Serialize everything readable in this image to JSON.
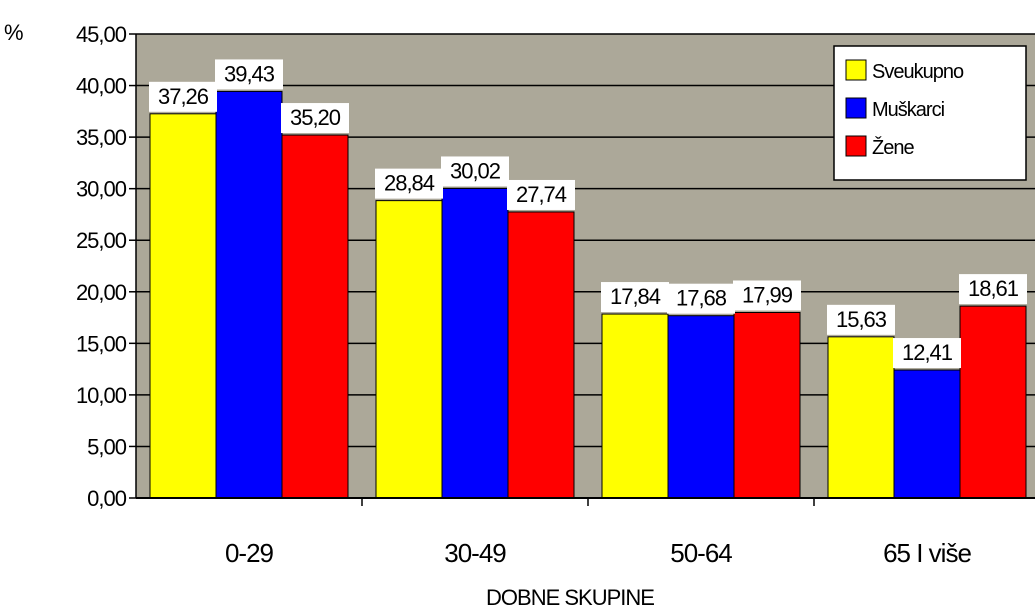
{
  "chart_data": {
    "type": "bar",
    "title": "",
    "y_unit": "%",
    "xlabel": "DOBNE SKUPINE",
    "ylabel": "",
    "ylim": [
      0,
      45
    ],
    "y_ticks": [
      "0,00",
      "5,00",
      "10,00",
      "15,00",
      "20,00",
      "25,00",
      "30,00",
      "35,00",
      "40,00",
      "45,00"
    ],
    "grid": true,
    "legend_position": "top-right",
    "categories": [
      "0-29",
      "30-49",
      "50-64",
      "65 I više"
    ],
    "series": [
      {
        "name": "Sveukupno",
        "color": "#ffff00",
        "values": [
          37.26,
          28.84,
          17.84,
          15.63
        ],
        "labels": [
          "37,26",
          "28,84",
          "17,84",
          "15,63"
        ]
      },
      {
        "name": "Muškarci",
        "color": "#0000ff",
        "values": [
          39.43,
          30.02,
          17.68,
          12.41
        ],
        "labels": [
          "39,43",
          "30,02",
          "17,68",
          "12,41"
        ]
      },
      {
        "name": "Žene",
        "color": "#ff0000",
        "values": [
          35.2,
          27.74,
          17.99,
          18.61
        ],
        "labels": [
          "35,20",
          "27,74",
          "17,99",
          "18,61"
        ]
      }
    ],
    "plot_background": "#aca899"
  }
}
